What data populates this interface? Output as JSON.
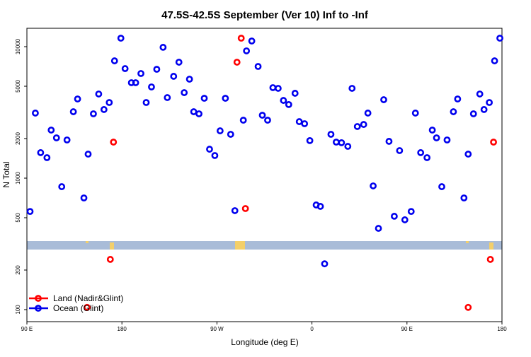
{
  "chart_data": {
    "type": "scatter",
    "title": "47.5S-42.5S September (Ver 10)   Inf to -Inf",
    "x_label": "Longitude (deg E)",
    "y_label": "N Total",
    "log_y": true,
    "xlim": [
      90,
      540
    ],
    "ylim": [
      81,
      13800
    ],
    "xticks": [
      {
        "value": 90,
        "label": "90 E"
      },
      180,
      {
        "value": 270,
        "label": "90 W"
      },
      {
        "value": 360,
        "label": "0"
      },
      {
        "value": 450,
        "label": "90 E"
      },
      {
        "value": 540,
        "label": "180"
      }
    ],
    "yticks": [
      100,
      200,
      500,
      1000,
      2000,
      5000,
      10000
    ],
    "legend": "bottom-left",
    "series": [
      {
        "name": "Land (Nadir&Glint)",
        "color": "#ff0000",
        "x": [
          172,
          169,
          289,
          293,
          297,
          147,
          508,
          532,
          529
        ],
        "values": [
          1880,
          241,
          7620,
          11600,
          587,
          104,
          104,
          1880,
          241
        ]
      },
      {
        "name": "Ocean (Glint)",
        "color": "#0000ee",
        "x": [
          93,
          98,
          103,
          109,
          113,
          118,
          123,
          128,
          134,
          138,
          144,
          148,
          153,
          158,
          163,
          168,
          173,
          179,
          183,
          189,
          193,
          198,
          203,
          208,
          213,
          219,
          223,
          229,
          234,
          239,
          244,
          248,
          253,
          258,
          263,
          268,
          273,
          278,
          283,
          287,
          295,
          298,
          303,
          309,
          313,
          318,
          323,
          328,
          333,
          338,
          344,
          348,
          353,
          358,
          364,
          368,
          372,
          378,
          383,
          388,
          394,
          398,
          403,
          409,
          413,
          418,
          423,
          428,
          433,
          438,
          443,
          448,
          454,
          458,
          463,
          469,
          474,
          478,
          483,
          488,
          494,
          498,
          504,
          508,
          513,
          519,
          523,
          528,
          533,
          538
        ],
        "values": [
          558,
          3126,
          1563,
          1432,
          2321,
          2025,
          861,
          1952,
          3200,
          4000,
          707,
          1523,
          3085,
          4365,
          3325,
          3760,
          7800,
          11600,
          6810,
          5320,
          5320,
          6250,
          3760,
          4940,
          6730,
          9890,
          4100,
          5950,
          7620,
          4470,
          5660,
          3200,
          3085,
          4050,
          1660,
          1486,
          2290,
          4050,
          2155,
          566,
          2760,
          9290,
          11040,
          7070,
          3010,
          2760,
          4880,
          4820,
          3900,
          3630,
          4420,
          2690,
          2595,
          1930,
          625,
          610,
          223,
          2155,
          1880,
          1860,
          1745,
          4820,
          2470,
          2560,
          3126,
          873,
          415,
          3950,
          1905,
          513,
          1620,
          482,
          558,
          3126,
          1563,
          1432,
          2321,
          2025,
          861,
          1952,
          3200,
          4000,
          707,
          1523,
          3085,
          4365,
          3325,
          3760,
          7800,
          11600
        ]
      }
    ]
  }
}
